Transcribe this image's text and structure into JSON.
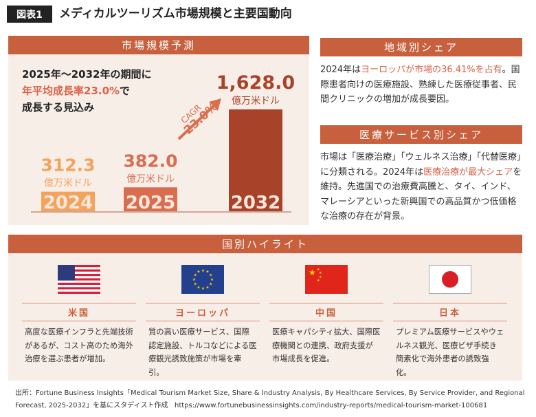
{
  "header": {
    "figure_label": "図表1",
    "title": "メディカルツーリズム市場規模と主要国動向"
  },
  "market": {
    "heading": "市場規模予測",
    "intro_line1": "2025年〜2032年の期間に",
    "intro_line2_hl": "年平均成長率23.0%",
    "intro_line2_rest": "で",
    "intro_line3": "成長する見込み",
    "cagr_label": "CAGR",
    "cagr_value": "23.0%",
    "unit": "億万米ドル"
  },
  "chart_data": {
    "type": "bar",
    "categories": [
      "2024",
      "2025",
      "2032"
    ],
    "values": [
      312.3,
      382.0,
      1628.0
    ],
    "value_labels": [
      "312.3",
      "382.0",
      "1,628.0"
    ],
    "unit": "億万米ドル",
    "colors": [
      "#f4a35c",
      "#d86e4f",
      "#a8432a"
    ],
    "annotation": "CAGR 23.0%"
  },
  "region_share": {
    "heading": "地域別シェア",
    "text_pre": "2024年は",
    "text_hl": "ヨーロッパが市場の36.41%を占有",
    "text_post": "。国際患者向けの医療施設、熟練した医療従事者、民間クリニックの増加が成長要因。"
  },
  "service_share": {
    "heading": "医療サービス別シェア",
    "text_pre": "市場は「医療治療」「ウェルネス治療」「代替医療」に分類される。2024年は",
    "text_hl": "医療治療が最大シェア",
    "text_post": "を維持。先進国での治療費高騰と、タイ、インド、マレーシアといった新興国での高品質かつ低価格な治療の存在が背景。"
  },
  "countries": {
    "heading": "国別ハイライト",
    "items": [
      {
        "name": "米国",
        "flag": "us-flag",
        "text": "高度な医療インフラと先端技術があるが、コスト高のため海外治療を選ぶ患者が増加。"
      },
      {
        "name": "ヨーロッパ",
        "flag": "eu-flag",
        "text": "質の高い医療サービス、国際認定施設、トルコなどによる医療観光誘致施策が市場を牽引。"
      },
      {
        "name": "中国",
        "flag": "china-flag",
        "text": "医療キャパシティ拡大、国際医療機関との連携、政府支援が市場成長を促進。"
      },
      {
        "name": "日本",
        "flag": "japan-flag",
        "text": "プレミアム医療サービスやウェルネス観光、医療ビザ手続き簡素化で海外患者の誘致強化。"
      }
    ]
  },
  "footer": {
    "source": "出所：Fortune Business Insights「Medical Tourism Market Size, Share & Industry Analysis, By Healthcare Services, By Service Provider, and Regional Forecast, 2025-2032」を基にスタディスト作成",
    "url": "https://www.fortunebusinessinsights.com/industry-reports/medical-tourism-market-100681"
  },
  "colors": {
    "accent": "#c8603e",
    "highlight": "#d8644a",
    "panel_bg": "#f8eee8"
  }
}
